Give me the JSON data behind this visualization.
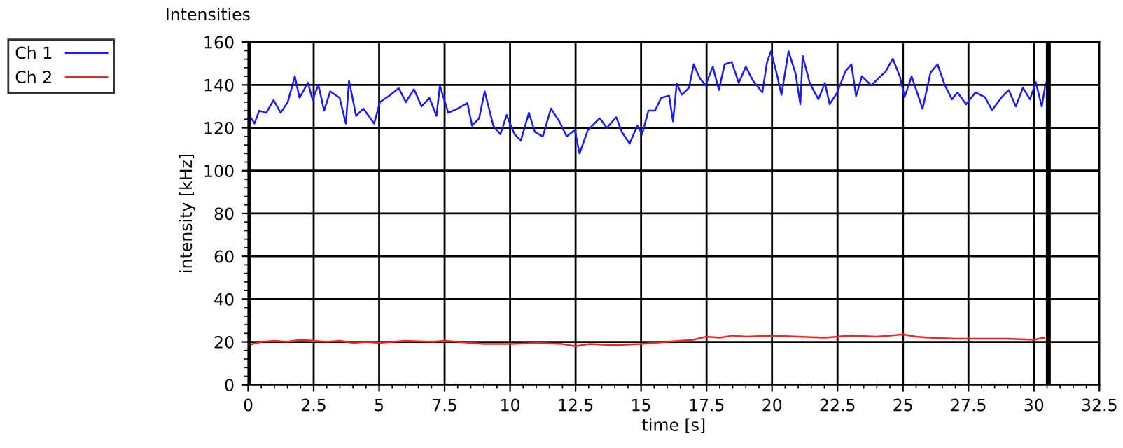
{
  "chart_data": {
    "type": "line",
    "title": "Intensities",
    "xlabel": "time [s]",
    "ylabel": "intensity [kHz]",
    "xlim": [
      0,
      32.5
    ],
    "xticks": [
      0,
      2.5,
      5,
      7.5,
      10,
      12.5,
      15,
      17.5,
      20,
      22.5,
      25,
      27.5,
      30,
      32.5
    ],
    "ylim": [
      0,
      160
    ],
    "yticks": [
      0,
      20,
      40,
      60,
      80,
      100,
      120,
      140,
      160
    ],
    "grid": true,
    "legend": "top left",
    "line_style": "solid",
    "marker": "none",
    "ref_lines": [
      {
        "axis": "x",
        "value": 0,
        "color": "#000000"
      },
      {
        "axis": "x",
        "value": 30.55,
        "color": "#000000"
      }
    ],
    "series": [
      {
        "name": "Ch 1",
        "color": "#1a1aff",
        "x": [
          0.06,
          0.24,
          0.42,
          0.69,
          0.97,
          1.24,
          1.51,
          1.78,
          1.96,
          2.28,
          2.46,
          2.68,
          2.9,
          3.13,
          3.49,
          3.73,
          3.85,
          4.12,
          4.4,
          4.81,
          5.03,
          5.39,
          5.75,
          6.02,
          6.33,
          6.62,
          6.92,
          7.19,
          7.32,
          7.64,
          8.0,
          8.37,
          8.55,
          8.82,
          9.03,
          9.36,
          9.63,
          9.87,
          10.17,
          10.41,
          10.72,
          10.95,
          11.25,
          11.56,
          11.88,
          12.16,
          12.47,
          12.65,
          12.97,
          13.42,
          13.69,
          14.05,
          14.27,
          14.56,
          14.86,
          15.04,
          15.28,
          15.53,
          15.77,
          16.07,
          16.22,
          16.36,
          16.56,
          16.83,
          17.01,
          17.25,
          17.46,
          17.74,
          17.97,
          18.19,
          18.46,
          18.73,
          19.0,
          19.27,
          19.63,
          19.81,
          19.96,
          20.18,
          20.36,
          20.63,
          20.9,
          21.08,
          21.17,
          21.44,
          21.77,
          22.02,
          22.2,
          22.49,
          22.8,
          23.03,
          23.21,
          23.43,
          23.79,
          24.06,
          24.34,
          24.61,
          24.88,
          25.06,
          25.33,
          25.75,
          26.05,
          26.32,
          26.6,
          26.87,
          27.08,
          27.41,
          27.77,
          28.13,
          28.4,
          28.77,
          29.04,
          29.31,
          29.58,
          29.85,
          30.07,
          30.3,
          30.45
        ],
        "values": [
          125.6,
          122,
          128,
          127,
          133,
          127,
          132,
          144,
          134,
          141,
          133,
          140,
          128,
          137,
          134,
          122,
          142,
          125.6,
          129,
          122,
          132,
          135,
          138.5,
          132,
          138,
          130,
          134,
          125.6,
          139.6,
          127,
          129,
          131.6,
          121,
          124.5,
          137,
          121,
          117,
          126,
          117,
          114,
          127,
          118,
          116,
          129,
          123,
          116,
          119,
          108,
          119,
          124.5,
          120,
          125,
          118,
          112.7,
          121,
          117,
          128,
          128,
          134,
          135,
          123,
          140.6,
          135.4,
          138.7,
          149.6,
          143,
          139.8,
          148.5,
          137.6,
          149.6,
          150.7,
          140.9,
          148.5,
          142,
          136.5,
          150.7,
          155.7,
          145.2,
          135.4,
          155.7,
          145.2,
          131,
          153.5,
          140.9,
          133.3,
          140.9,
          131,
          136.5,
          146.3,
          149.6,
          134.8,
          144,
          139.8,
          143,
          146.3,
          152.2,
          144,
          134.3,
          144,
          128.9,
          145.7,
          149.6,
          139.8,
          133.3,
          136.5,
          131,
          136.5,
          134.3,
          128.3,
          134.3,
          137.6,
          130,
          138.7,
          133.3,
          141.3,
          130,
          140.9
        ]
      },
      {
        "name": "Ch 2",
        "color": "#ff2020",
        "x": [
          0,
          0.5,
          1,
          1.5,
          2,
          2.5,
          3,
          3.5,
          4,
          4.5,
          5,
          6,
          7,
          7.5,
          8,
          9,
          10,
          11,
          12,
          12.5,
          13,
          14,
          15,
          15.5,
          16,
          16.5,
          17,
          17.5,
          18,
          18.5,
          19,
          20,
          21,
          22,
          22.5,
          23,
          24,
          24.5,
          25,
          25.5,
          26,
          27,
          28,
          29,
          30,
          30.4
        ],
        "values": [
          18.5,
          20,
          20.5,
          20,
          21,
          20.5,
          20,
          20.5,
          19.5,
          20,
          19.5,
          20.5,
          20,
          20.5,
          20,
          19,
          19,
          19.5,
          19,
          18,
          19,
          18.5,
          19,
          19.5,
          20,
          20.5,
          21,
          22.5,
          22,
          23,
          22.5,
          23,
          22.5,
          22,
          22.5,
          23,
          22.5,
          23,
          23.5,
          22.5,
          22,
          21.5,
          21.5,
          21.5,
          21,
          22
        ]
      }
    ]
  }
}
